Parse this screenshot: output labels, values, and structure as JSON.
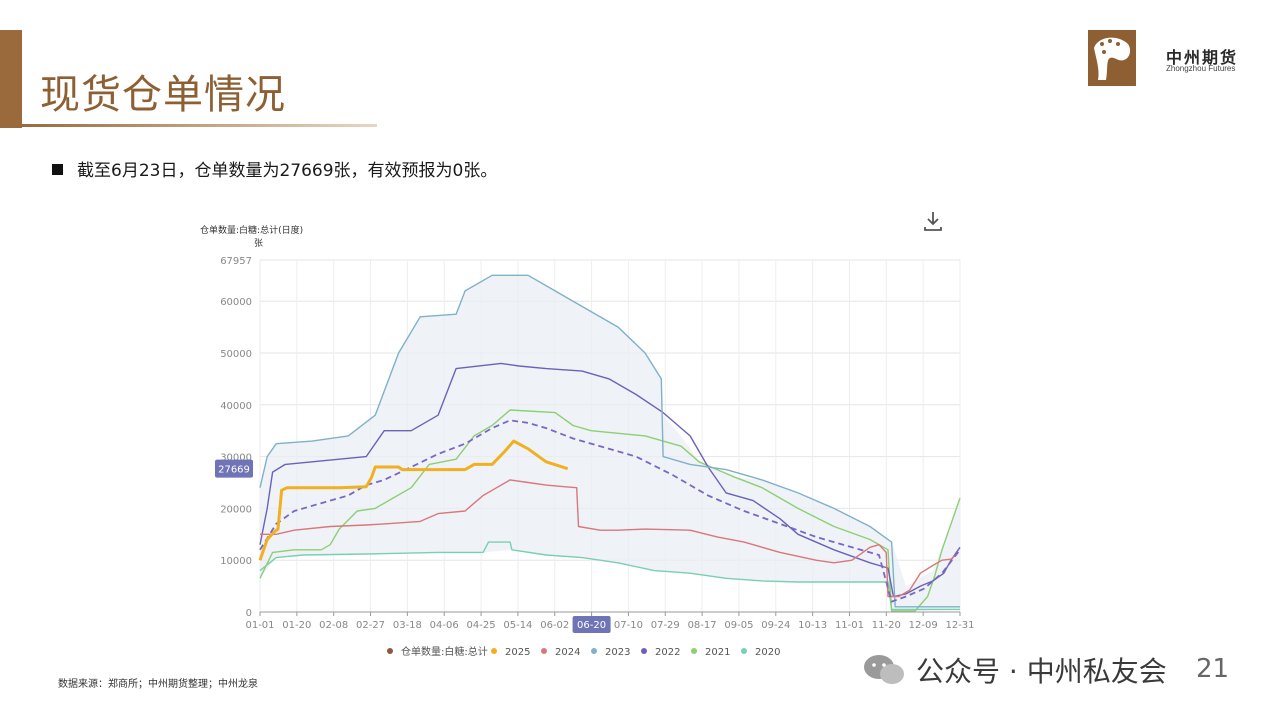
{
  "slide": {
    "title": "现货仓单情况",
    "bullet": "截至6月23日，仓单数量为27669张，有效预报为0张。",
    "source": "数据来源：郑商所；中州期货整理；中州龙泉",
    "wechat_label": "公众号 · 中州私友会",
    "page_number": "21"
  },
  "logo": {
    "name_cn": "中州期货",
    "name_en": "Zhongzhou Futures",
    "color": "#8d5f33"
  },
  "colors": {
    "accent": "#9b6a3c",
    "title": "#8d5f33"
  },
  "chart_data": {
    "type": "line",
    "title": "仓单数量:白糖:总计(日度)",
    "unit": "张",
    "ylim": [
      0,
      67957
    ],
    "ymax_label": "67957",
    "yticks": [
      0,
      10000,
      20000,
      30000,
      40000,
      50000,
      60000
    ],
    "ytick_labels": [
      "0",
      "10000",
      "20000",
      "30000",
      "40000",
      "50000",
      "60000"
    ],
    "x_labels": [
      "01-01",
      "01-20",
      "02-08",
      "02-27",
      "03-18",
      "04-06",
      "04-25",
      "05-14",
      "06-02",
      "06-20",
      "07-10",
      "07-29",
      "08-17",
      "09-05",
      "09-24",
      "10-13",
      "11-01",
      "11-20",
      "12-09",
      "12-31"
    ],
    "highlight_x_label": "06-20",
    "current_value_label": "27669",
    "current_value": 27669,
    "grid": true,
    "legend_position": "bottom",
    "legend": [
      {
        "name": "仓单数量:白糖:总计",
        "color": "#8b5a3c"
      },
      {
        "name": "2025",
        "color": "#f0b020"
      },
      {
        "name": "2024",
        "color": "#d9777a"
      },
      {
        "name": "2023",
        "color": "#7fb1c9"
      },
      {
        "name": "2022",
        "color": "#6a62b8"
      },
      {
        "name": "2021",
        "color": "#8ccf74"
      },
      {
        "name": "2020",
        "color": "#79cfb0"
      }
    ],
    "band_color": "#e9edf4",
    "average_color": "#7b66c2",
    "series": [
      {
        "name": "2025",
        "color": "#f0b020",
        "width": 3,
        "points": [
          [
            1,
            10000
          ],
          [
            5,
            14000
          ],
          [
            9,
            15500
          ],
          [
            11,
            16000
          ],
          [
            13,
            23500
          ],
          [
            16,
            24000
          ],
          [
            30,
            24000
          ],
          [
            45,
            24000
          ],
          [
            60,
            24200
          ],
          [
            63,
            26000
          ],
          [
            65,
            28000
          ],
          [
            78,
            28000
          ],
          [
            80,
            27500
          ],
          [
            100,
            27500
          ],
          [
            115,
            27500
          ],
          [
            120,
            28500
          ],
          [
            130,
            28500
          ],
          [
            137,
            31000
          ],
          [
            142,
            33000
          ],
          [
            150,
            31500
          ],
          [
            160,
            29000
          ],
          [
            172,
            27669
          ]
        ]
      },
      {
        "name": "2024",
        "color": "#d9777a",
        "width": 1.4,
        "points": [
          [
            1,
            15000
          ],
          [
            10,
            15000
          ],
          [
            20,
            15800
          ],
          [
            40,
            16500
          ],
          [
            60,
            16800
          ],
          [
            70,
            17000
          ],
          [
            90,
            17500
          ],
          [
            100,
            19000
          ],
          [
            115,
            19500
          ],
          [
            120,
            21000
          ],
          [
            125,
            22500
          ],
          [
            130,
            23500
          ],
          [
            140,
            25500
          ],
          [
            150,
            25000
          ],
          [
            160,
            24500
          ],
          [
            170,
            24200
          ],
          [
            177,
            24000
          ],
          [
            178,
            16500
          ],
          [
            190,
            15800
          ],
          [
            200,
            15800
          ],
          [
            215,
            16000
          ],
          [
            240,
            15800
          ],
          [
            255,
            14500
          ],
          [
            270,
            13500
          ],
          [
            290,
            11500
          ],
          [
            310,
            10000
          ],
          [
            320,
            9500
          ],
          [
            330,
            10000
          ],
          [
            340,
            12500
          ],
          [
            345,
            13000
          ],
          [
            349,
            11500
          ],
          [
            350,
            3000
          ],
          [
            356,
            3000
          ],
          [
            362,
            4200
          ],
          [
            368,
            7500
          ],
          [
            375,
            9000
          ],
          [
            380,
            10000
          ],
          [
            385,
            10200
          ],
          [
            389,
            11500
          ]
        ]
      },
      {
        "name": "2023",
        "color": "#7fb1c9",
        "width": 1.4,
        "points": [
          [
            1,
            24000
          ],
          [
            5,
            30000
          ],
          [
            10,
            32500
          ],
          [
            30,
            33000
          ],
          [
            50,
            34000
          ],
          [
            65,
            38000
          ],
          [
            78,
            50000
          ],
          [
            90,
            57000
          ],
          [
            110,
            57500
          ],
          [
            115,
            62000
          ],
          [
            130,
            65000
          ],
          [
            150,
            65000
          ],
          [
            165,
            62000
          ],
          [
            185,
            58000
          ],
          [
            200,
            55000
          ],
          [
            215,
            50000
          ],
          [
            224,
            45000
          ],
          [
            225,
            30000
          ],
          [
            240,
            28500
          ],
          [
            260,
            27500
          ],
          [
            280,
            25500
          ],
          [
            300,
            23000
          ],
          [
            320,
            20000
          ],
          [
            340,
            16500
          ],
          [
            348,
            14500
          ],
          [
            352,
            13500
          ],
          [
            354,
            1000
          ],
          [
            390,
            1000
          ]
        ]
      },
      {
        "name": "2022",
        "color": "#6a62b8",
        "width": 1.4,
        "points": [
          [
            1,
            13000
          ],
          [
            5,
            20000
          ],
          [
            8,
            27000
          ],
          [
            15,
            28500
          ],
          [
            30,
            29000
          ],
          [
            45,
            29500
          ],
          [
            60,
            30000
          ],
          [
            70,
            35000
          ],
          [
            85,
            35000
          ],
          [
            100,
            38000
          ],
          [
            110,
            47000
          ],
          [
            135,
            48000
          ],
          [
            145,
            47500
          ],
          [
            160,
            47000
          ],
          [
            180,
            46500
          ],
          [
            195,
            45000
          ],
          [
            210,
            42000
          ],
          [
            225,
            38500
          ],
          [
            240,
            34000
          ],
          [
            250,
            28000
          ],
          [
            260,
            23000
          ],
          [
            275,
            21500
          ],
          [
            290,
            18000
          ],
          [
            300,
            15000
          ],
          [
            320,
            12000
          ],
          [
            340,
            9500
          ],
          [
            350,
            8500
          ],
          [
            353,
            3000
          ],
          [
            360,
            3500
          ],
          [
            368,
            5000
          ],
          [
            375,
            6000
          ],
          [
            381,
            7500
          ],
          [
            385,
            10000
          ],
          [
            390,
            12500
          ]
        ]
      },
      {
        "name": "2021",
        "color": "#8ccf74",
        "width": 1.4,
        "points": [
          [
            1,
            6500
          ],
          [
            8,
            11500
          ],
          [
            20,
            12000
          ],
          [
            35,
            12000
          ],
          [
            40,
            13000
          ],
          [
            45,
            16000
          ],
          [
            55,
            19500
          ],
          [
            65,
            20000
          ],
          [
            75,
            22000
          ],
          [
            85,
            24000
          ],
          [
            95,
            28500
          ],
          [
            110,
            29500
          ],
          [
            120,
            34000
          ],
          [
            130,
            36000
          ],
          [
            140,
            39000
          ],
          [
            165,
            38500
          ],
          [
            175,
            36000
          ],
          [
            185,
            35000
          ],
          [
            200,
            34500
          ],
          [
            215,
            34000
          ],
          [
            235,
            32000
          ],
          [
            245,
            29000
          ],
          [
            255,
            27500
          ],
          [
            265,
            26000
          ],
          [
            280,
            24000
          ],
          [
            300,
            20000
          ],
          [
            320,
            16500
          ],
          [
            340,
            14000
          ],
          [
            350,
            12000
          ],
          [
            352,
            200
          ],
          [
            365,
            200
          ],
          [
            372,
            3000
          ],
          [
            376,
            7000
          ],
          [
            380,
            12000
          ],
          [
            385,
            17000
          ],
          [
            390,
            22000
          ]
        ]
      },
      {
        "name": "2020",
        "color": "#79cfb0",
        "width": 1.4,
        "points": [
          [
            1,
            8000
          ],
          [
            10,
            10500
          ],
          [
            25,
            11000
          ],
          [
            60,
            11200
          ],
          [
            100,
            11500
          ],
          [
            110,
            11500
          ],
          [
            125,
            11500
          ],
          [
            128,
            13500
          ],
          [
            140,
            13500
          ],
          [
            141,
            12000
          ],
          [
            160,
            11000
          ],
          [
            180,
            10500
          ],
          [
            200,
            9500
          ],
          [
            220,
            8000
          ],
          [
            240,
            7500
          ],
          [
            260,
            6500
          ],
          [
            280,
            6000
          ],
          [
            300,
            5800
          ],
          [
            320,
            5800
          ],
          [
            340,
            5800
          ],
          [
            350,
            5800
          ],
          [
            352,
            500
          ],
          [
            390,
            500
          ]
        ]
      },
      {
        "name": "average",
        "color": "#7b66c2",
        "width": 1.8,
        "dashed": true,
        "points": [
          [
            1,
            12000
          ],
          [
            10,
            17000
          ],
          [
            20,
            19500
          ],
          [
            35,
            21000
          ],
          [
            50,
            22500
          ],
          [
            60,
            24500
          ],
          [
            70,
            25500
          ],
          [
            85,
            28000
          ],
          [
            100,
            30500
          ],
          [
            115,
            32500
          ],
          [
            130,
            35500
          ],
          [
            140,
            37000
          ],
          [
            150,
            36500
          ],
          [
            160,
            35500
          ],
          [
            175,
            33500
          ],
          [
            190,
            32000
          ],
          [
            210,
            30000
          ],
          [
            230,
            26500
          ],
          [
            250,
            22500
          ],
          [
            270,
            19500
          ],
          [
            290,
            17000
          ],
          [
            310,
            14500
          ],
          [
            330,
            12500
          ],
          [
            345,
            11000
          ],
          [
            352,
            2000
          ],
          [
            360,
            3000
          ],
          [
            370,
            4500
          ],
          [
            380,
            7500
          ],
          [
            390,
            12000
          ]
        ]
      }
    ],
    "band": {
      "upper": [
        [
          1,
          24000
        ],
        [
          5,
          30000
        ],
        [
          10,
          32500
        ],
        [
          30,
          33000
        ],
        [
          50,
          34000
        ],
        [
          65,
          38000
        ],
        [
          78,
          50000
        ],
        [
          90,
          57000
        ],
        [
          110,
          57500
        ],
        [
          115,
          62000
        ],
        [
          130,
          65000
        ],
        [
          150,
          65000
        ],
        [
          165,
          62000
        ],
        [
          185,
          58000
        ],
        [
          200,
          55000
        ],
        [
          215,
          50000
        ],
        [
          224,
          45000
        ],
        [
          225,
          38000
        ],
        [
          235,
          34000
        ],
        [
          245,
          29000
        ],
        [
          255,
          27500
        ],
        [
          265,
          26000
        ],
        [
          280,
          25500
        ],
        [
          300,
          23000
        ],
        [
          320,
          20000
        ],
        [
          340,
          16500
        ],
        [
          348,
          14500
        ],
        [
          352,
          13500
        ],
        [
          360,
          5000
        ],
        [
          375,
          8000
        ],
        [
          385,
          17000
        ],
        [
          390,
          22000
        ]
      ],
      "lower": [
        [
          1,
          6500
        ],
        [
          10,
          10500
        ],
        [
          25,
          11000
        ],
        [
          60,
          11200
        ],
        [
          100,
          11500
        ],
        [
          125,
          11500
        ],
        [
          141,
          12000
        ],
        [
          160,
          11000
        ],
        [
          180,
          10500
        ],
        [
          200,
          9500
        ],
        [
          220,
          8000
        ],
        [
          240,
          7500
        ],
        [
          260,
          6500
        ],
        [
          280,
          6000
        ],
        [
          320,
          5800
        ],
        [
          350,
          5800
        ],
        [
          352,
          200
        ],
        [
          365,
          200
        ],
        [
          390,
          500
        ]
      ]
    }
  }
}
